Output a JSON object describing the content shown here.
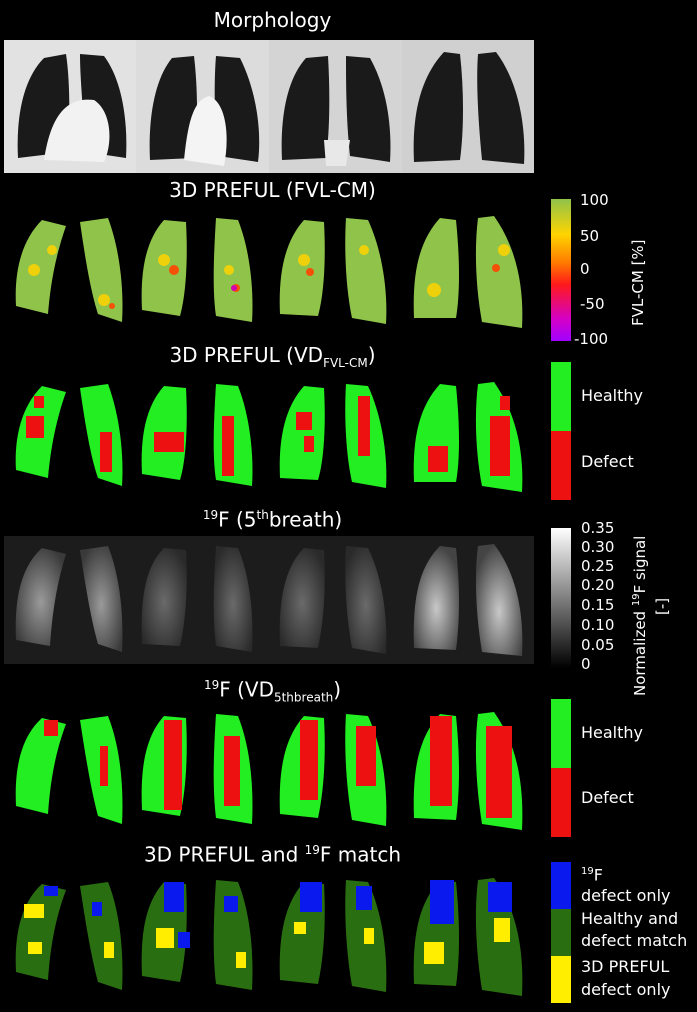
{
  "titles": {
    "morphology": "Morphology",
    "fvl": "3D PREFUL (FVL-CM)",
    "vd_fvl_main": "3D PREFUL (VD",
    "vd_fvl_sub": "FVL-CM",
    "vd_fvl_close": ")",
    "f19_sup": "19",
    "f19_main": "F (5",
    "f19_sup2": "th",
    "f19_tail": "breath)",
    "f19vd_sup": "19",
    "f19vd_main": "F (VD",
    "f19vd_sub": "5thbreath",
    "f19vd_close": ")",
    "match_main": "3D PREFUL and ",
    "match_sup": "19",
    "match_tail": "F match"
  },
  "colorbar_fvl": {
    "label": "FVL-CM [%]",
    "ticks": [
      "100",
      "50",
      "0",
      "-50",
      "-100"
    ]
  },
  "colorbar_vd1": {
    "healthy": "Healthy",
    "defect": "Defect"
  },
  "colorbar_f19": {
    "label_pre": "Normalized ",
    "label_sup": "19",
    "label_post": "F signal",
    "label_unit": "[-]",
    "ticks": [
      "0.35",
      "0.30",
      "0.25",
      "0.20",
      "0.15",
      "0.10",
      "0.05",
      "0"
    ]
  },
  "colorbar_vd2": {
    "healthy": "Healthy",
    "defect": "Defect"
  },
  "legend_match": {
    "blue_sup": "19",
    "blue_line1": "F",
    "blue_line2": "defect only",
    "green_line1": "Healthy and",
    "green_line2": "defect match",
    "yellow_line1": "3D PREFUL",
    "yellow_line2": "defect only"
  },
  "colors": {
    "healthy_green": "#22ee22",
    "defect_red": "#ee1111",
    "match_green": "#2a6e12",
    "f19_blue": "#0a1aee",
    "preful_yellow": "#ffee00",
    "fvl_base": "#8fc34a"
  }
}
